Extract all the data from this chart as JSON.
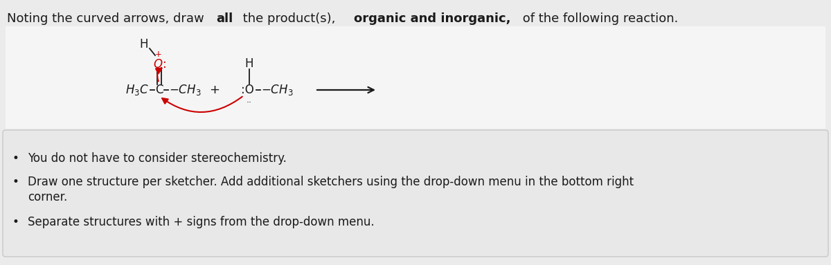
{
  "bg_color": "#ebebeb",
  "white_bg": "#f5f5f5",
  "box_bg": "#e8e8e8",
  "box_edge": "#c8c8c8",
  "arrow_color": "#cc0000",
  "text_color": "#1a1a1a",
  "title_fs": 13,
  "chem_fs": 12,
  "bullet_fs": 12,
  "title_pieces": [
    [
      "Noting the curved arrows, draw ",
      false
    ],
    [
      "all",
      true
    ],
    [
      " the product(s), ",
      false
    ],
    [
      "organic and inorganic,",
      true
    ],
    [
      " of the following reaction.",
      false
    ]
  ],
  "bullet_line1": "You do not have to consider stereochemistry.",
  "bullet_line2a": "Draw one structure per sketcher. Add additional sketchers using the drop-down menu in the bottom right",
  "bullet_line2b": "corner.",
  "bullet_line3": "Separate structures with + signs from the drop-down menu."
}
